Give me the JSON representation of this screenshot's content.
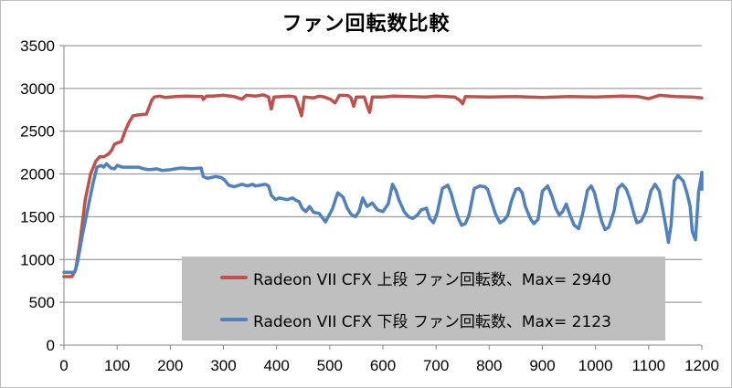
{
  "chart_data": {
    "type": "line",
    "title": "ファン回転数比較",
    "xlim": [
      0,
      1200
    ],
    "ylim": [
      0,
      3500
    ],
    "xticks": [
      0,
      100,
      200,
      300,
      400,
      500,
      600,
      700,
      800,
      900,
      1000,
      1100,
      1200
    ],
    "yticks": [
      0,
      500,
      1000,
      1500,
      2000,
      2500,
      3000,
      3500
    ],
    "grid": "horizontal",
    "legend_position": "bottom-right",
    "series": [
      {
        "name": "Radeon VII CFX 上段 ファン回転数、Max= 2940",
        "color": "#c0504d",
        "points": [
          [
            0,
            800
          ],
          [
            15,
            800
          ],
          [
            22,
            880
          ],
          [
            30,
            1200
          ],
          [
            40,
            1700
          ],
          [
            50,
            2000
          ],
          [
            60,
            2150
          ],
          [
            67,
            2200
          ],
          [
            75,
            2200
          ],
          [
            85,
            2240
          ],
          [
            90,
            2280
          ],
          [
            95,
            2350
          ],
          [
            108,
            2380
          ],
          [
            115,
            2500
          ],
          [
            122,
            2600
          ],
          [
            130,
            2680
          ],
          [
            140,
            2690
          ],
          [
            155,
            2700
          ],
          [
            165,
            2860
          ],
          [
            170,
            2900
          ],
          [
            180,
            2910
          ],
          [
            190,
            2895
          ],
          [
            210,
            2905
          ],
          [
            230,
            2910
          ],
          [
            260,
            2905
          ],
          [
            262,
            2870
          ],
          [
            268,
            2910
          ],
          [
            280,
            2910
          ],
          [
            300,
            2920
          ],
          [
            320,
            2905
          ],
          [
            335,
            2875
          ],
          [
            343,
            2920
          ],
          [
            360,
            2910
          ],
          [
            375,
            2925
          ],
          [
            385,
            2900
          ],
          [
            390,
            2760
          ],
          [
            395,
            2900
          ],
          [
            410,
            2905
          ],
          [
            425,
            2910
          ],
          [
            435,
            2900
          ],
          [
            440,
            2820
          ],
          [
            447,
            2680
          ],
          [
            452,
            2900
          ],
          [
            470,
            2890
          ],
          [
            480,
            2910
          ],
          [
            490,
            2900
          ],
          [
            502,
            2870
          ],
          [
            510,
            2830
          ],
          [
            518,
            2920
          ],
          [
            535,
            2915
          ],
          [
            540,
            2890
          ],
          [
            545,
            2790
          ],
          [
            550,
            2900
          ],
          [
            565,
            2900
          ],
          [
            570,
            2800
          ],
          [
            575,
            2720
          ],
          [
            580,
            2900
          ],
          [
            600,
            2900
          ],
          [
            620,
            2910
          ],
          [
            650,
            2905
          ],
          [
            680,
            2900
          ],
          [
            700,
            2910
          ],
          [
            735,
            2900
          ],
          [
            745,
            2860
          ],
          [
            750,
            2820
          ],
          [
            755,
            2905
          ],
          [
            800,
            2900
          ],
          [
            850,
            2905
          ],
          [
            900,
            2895
          ],
          [
            950,
            2905
          ],
          [
            1000,
            2900
          ],
          [
            1050,
            2910
          ],
          [
            1080,
            2905
          ],
          [
            1100,
            2880
          ],
          [
            1120,
            2920
          ],
          [
            1150,
            2905
          ],
          [
            1180,
            2900
          ],
          [
            1200,
            2890
          ]
        ]
      },
      {
        "name": "Radeon VII CFX 下段 ファン回転数、Max= 2123",
        "color": "#4f81bd",
        "points": [
          [
            0,
            850
          ],
          [
            20,
            850
          ],
          [
            25,
            950
          ],
          [
            35,
            1300
          ],
          [
            45,
            1600
          ],
          [
            55,
            1900
          ],
          [
            62,
            2080
          ],
          [
            70,
            2100
          ],
          [
            75,
            2080
          ],
          [
            80,
            2120
          ],
          [
            88,
            2070
          ],
          [
            95,
            2060
          ],
          [
            100,
            2100
          ],
          [
            110,
            2080
          ],
          [
            125,
            2080
          ],
          [
            140,
            2080
          ],
          [
            150,
            2060
          ],
          [
            160,
            2050
          ],
          [
            175,
            2060
          ],
          [
            185,
            2040
          ],
          [
            200,
            2050
          ],
          [
            220,
            2070
          ],
          [
            240,
            2060
          ],
          [
            258,
            2070
          ],
          [
            262,
            1970
          ],
          [
            270,
            1950
          ],
          [
            285,
            1970
          ],
          [
            295,
            1960
          ],
          [
            302,
            1930
          ],
          [
            310,
            1870
          ],
          [
            320,
            1850
          ],
          [
            335,
            1880
          ],
          [
            345,
            1860
          ],
          [
            355,
            1880
          ],
          [
            360,
            1860
          ],
          [
            370,
            1870
          ],
          [
            378,
            1880
          ],
          [
            385,
            1860
          ],
          [
            390,
            1750
          ],
          [
            398,
            1700
          ],
          [
            405,
            1720
          ],
          [
            420,
            1700
          ],
          [
            430,
            1720
          ],
          [
            437,
            1690
          ],
          [
            442,
            1680
          ],
          [
            448,
            1600
          ],
          [
            455,
            1560
          ],
          [
            462,
            1620
          ],
          [
            470,
            1550
          ],
          [
            480,
            1540
          ],
          [
            492,
            1440
          ],
          [
            505,
            1590
          ],
          [
            515,
            1780
          ],
          [
            525,
            1730
          ],
          [
            533,
            1600
          ],
          [
            540,
            1530
          ],
          [
            548,
            1500
          ],
          [
            555,
            1560
          ],
          [
            562,
            1720
          ],
          [
            570,
            1620
          ],
          [
            580,
            1660
          ],
          [
            590,
            1580
          ],
          [
            600,
            1560
          ],
          [
            610,
            1650
          ],
          [
            618,
            1880
          ],
          [
            625,
            1800
          ],
          [
            630,
            1700
          ],
          [
            640,
            1560
          ],
          [
            648,
            1500
          ],
          [
            656,
            1480
          ],
          [
            665,
            1520
          ],
          [
            672,
            1580
          ],
          [
            682,
            1600
          ],
          [
            688,
            1480
          ],
          [
            695,
            1430
          ],
          [
            702,
            1540
          ],
          [
            712,
            1830
          ],
          [
            722,
            1870
          ],
          [
            728,
            1780
          ],
          [
            735,
            1620
          ],
          [
            742,
            1480
          ],
          [
            748,
            1400
          ],
          [
            755,
            1420
          ],
          [
            762,
            1520
          ],
          [
            772,
            1830
          ],
          [
            782,
            1860
          ],
          [
            792,
            1850
          ],
          [
            797,
            1820
          ],
          [
            803,
            1700
          ],
          [
            812,
            1530
          ],
          [
            820,
            1430
          ],
          [
            828,
            1460
          ],
          [
            835,
            1520
          ],
          [
            842,
            1690
          ],
          [
            850,
            1820
          ],
          [
            856,
            1830
          ],
          [
            862,
            1780
          ],
          [
            868,
            1620
          ],
          [
            878,
            1470
          ],
          [
            884,
            1420
          ],
          [
            892,
            1470
          ],
          [
            900,
            1800
          ],
          [
            910,
            1860
          ],
          [
            918,
            1740
          ],
          [
            925,
            1600
          ],
          [
            932,
            1520
          ],
          [
            938,
            1560
          ],
          [
            945,
            1650
          ],
          [
            952,
            1520
          ],
          [
            960,
            1400
          ],
          [
            968,
            1360
          ],
          [
            976,
            1540
          ],
          [
            985,
            1810
          ],
          [
            992,
            1860
          ],
          [
            998,
            1780
          ],
          [
            1005,
            1600
          ],
          [
            1012,
            1440
          ],
          [
            1018,
            1350
          ],
          [
            1025,
            1380
          ],
          [
            1035,
            1570
          ],
          [
            1042,
            1830
          ],
          [
            1050,
            1880
          ],
          [
            1058,
            1820
          ],
          [
            1065,
            1700
          ],
          [
            1072,
            1540
          ],
          [
            1078,
            1430
          ],
          [
            1086,
            1450
          ],
          [
            1095,
            1560
          ],
          [
            1104,
            1800
          ],
          [
            1112,
            1880
          ],
          [
            1120,
            1800
          ],
          [
            1126,
            1600
          ],
          [
            1132,
            1400
          ],
          [
            1137,
            1200
          ],
          [
            1142,
            1400
          ],
          [
            1148,
            1920
          ],
          [
            1155,
            1980
          ],
          [
            1165,
            1920
          ],
          [
            1172,
            1780
          ],
          [
            1178,
            1620
          ],
          [
            1182,
            1330
          ],
          [
            1188,
            1230
          ],
          [
            1194,
            1800
          ],
          [
            1200,
            2000
          ],
          [
            1212,
            2020
          ],
          [
            1220,
            1960
          ],
          [
            1230,
            1820
          ],
          [
            1200,
            1820
          ]
        ]
      }
    ]
  }
}
